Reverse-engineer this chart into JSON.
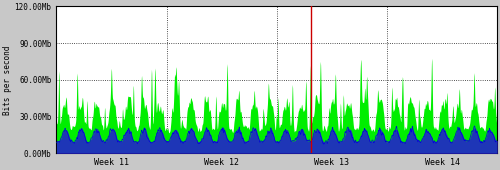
{
  "title": "",
  "ylabel": "Bits per second",
  "xlabel": "",
  "ylim": [
    0,
    120000000
  ],
  "yticks": [
    0,
    30000000,
    60000000,
    90000000,
    120000000
  ],
  "ytick_labels": [
    "0.00Mb",
    "30.00Mb",
    "60.00Mb",
    "90.00Mb",
    "120.00Mb"
  ],
  "xtick_labels": [
    "Week 11",
    "Week 12",
    "Week 13",
    "Week 14"
  ],
  "bg_color": "#c8c8c8",
  "plot_bg_color": "#ffffff",
  "fill_green": "#00ee00",
  "fill_blue": "#2222cc",
  "line_blue": "#0000dd",
  "red_line_x": 0.578,
  "n_points": 2000,
  "seed": 137
}
